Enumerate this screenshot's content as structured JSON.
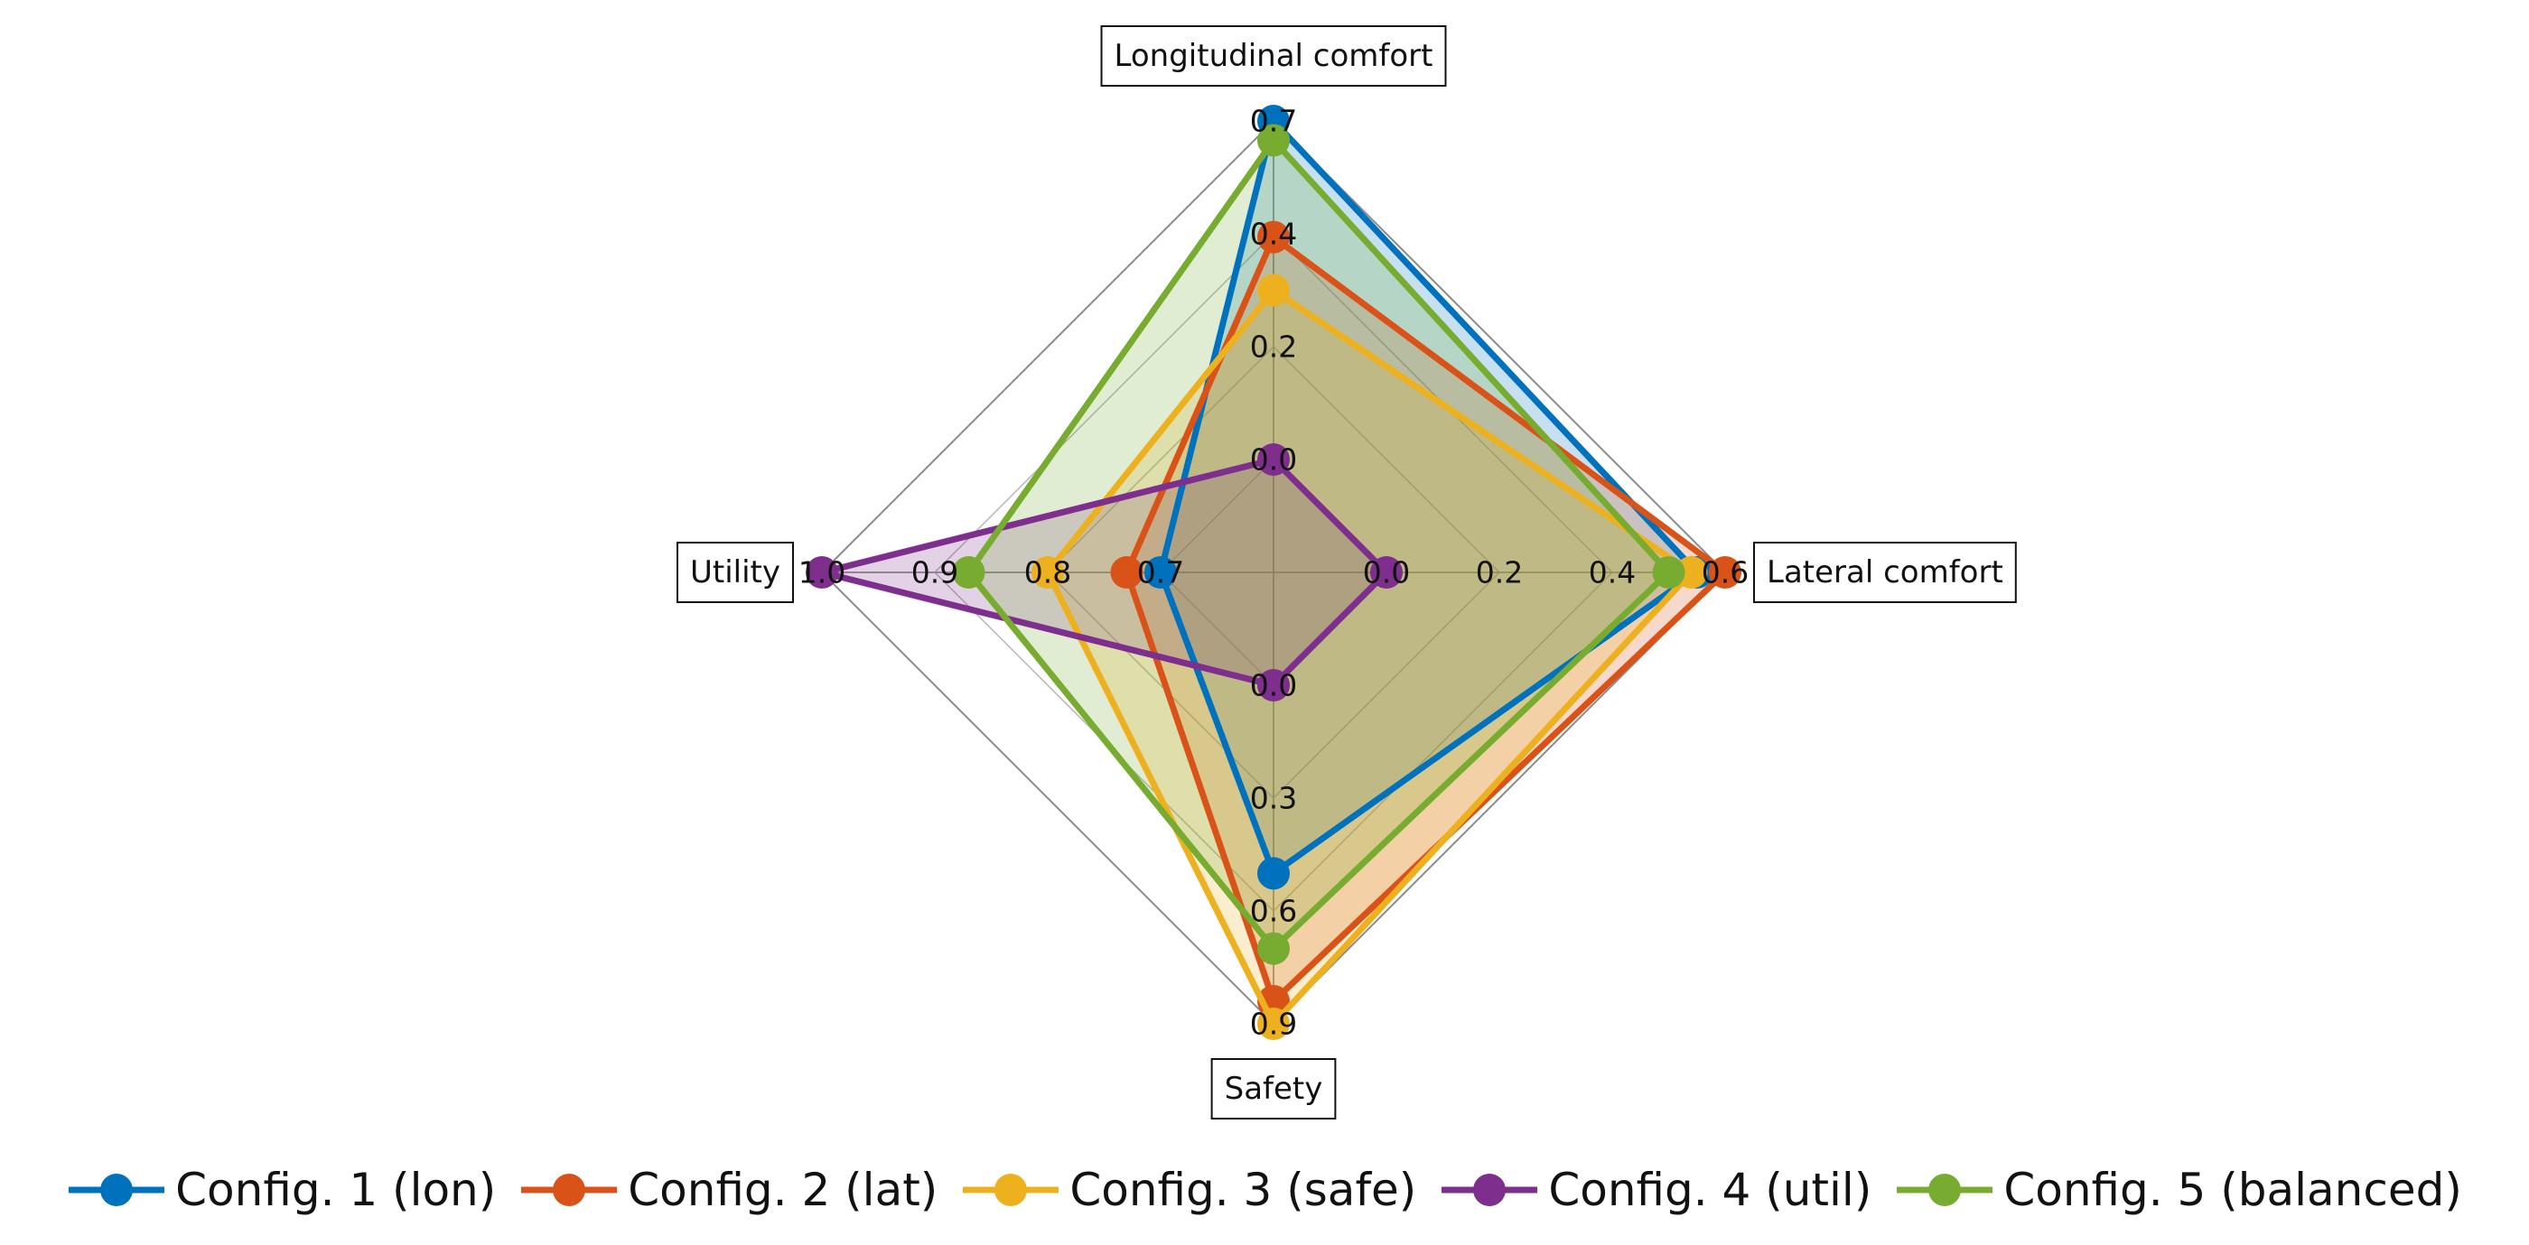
{
  "chart_data": {
    "type": "radar",
    "axes": [
      {
        "label": "Longitudinal comfort",
        "ticks": [
          "0.0",
          "0.2",
          "0.4",
          "0.7"
        ]
      },
      {
        "label": "Lateral comfort",
        "ticks": [
          "0.0",
          "0.2",
          "0.4",
          "0.6"
        ]
      },
      {
        "label": "Safety",
        "ticks": [
          "0.0",
          "0.3",
          "0.6",
          "0.9"
        ]
      },
      {
        "label": "Utility",
        "ticks": [
          "0.7",
          "0.8",
          "0.9",
          "1.0"
        ]
      }
    ],
    "axis_ranges": [
      [
        0.0,
        0.7
      ],
      [
        0.0,
        0.6
      ],
      [
        0.0,
        0.9
      ],
      [
        0.7,
        1.0
      ]
    ],
    "series": [
      {
        "name": "Config. 1 (lon)",
        "color": "#0072BD",
        "values": [
          0.7,
          0.55,
          0.5,
          0.7
        ]
      },
      {
        "name": "Config. 2 (lat)",
        "color": "#D95319",
        "values": [
          0.46,
          0.6,
          0.84,
          0.73
        ]
      },
      {
        "name": "Config. 3 (safe)",
        "color": "#EDB120",
        "values": [
          0.35,
          0.54,
          0.9,
          0.8
        ]
      },
      {
        "name": "Config. 4 (util)",
        "color": "#7E2F8E",
        "values": [
          0.0,
          0.0,
          0.0,
          1.0
        ]
      },
      {
        "name": "Config. 5 (balanced)",
        "color": "#77AC30",
        "values": [
          0.66,
          0.5,
          0.7,
          0.87
        ]
      }
    ],
    "legend_position": "bottom",
    "grid": true
  }
}
